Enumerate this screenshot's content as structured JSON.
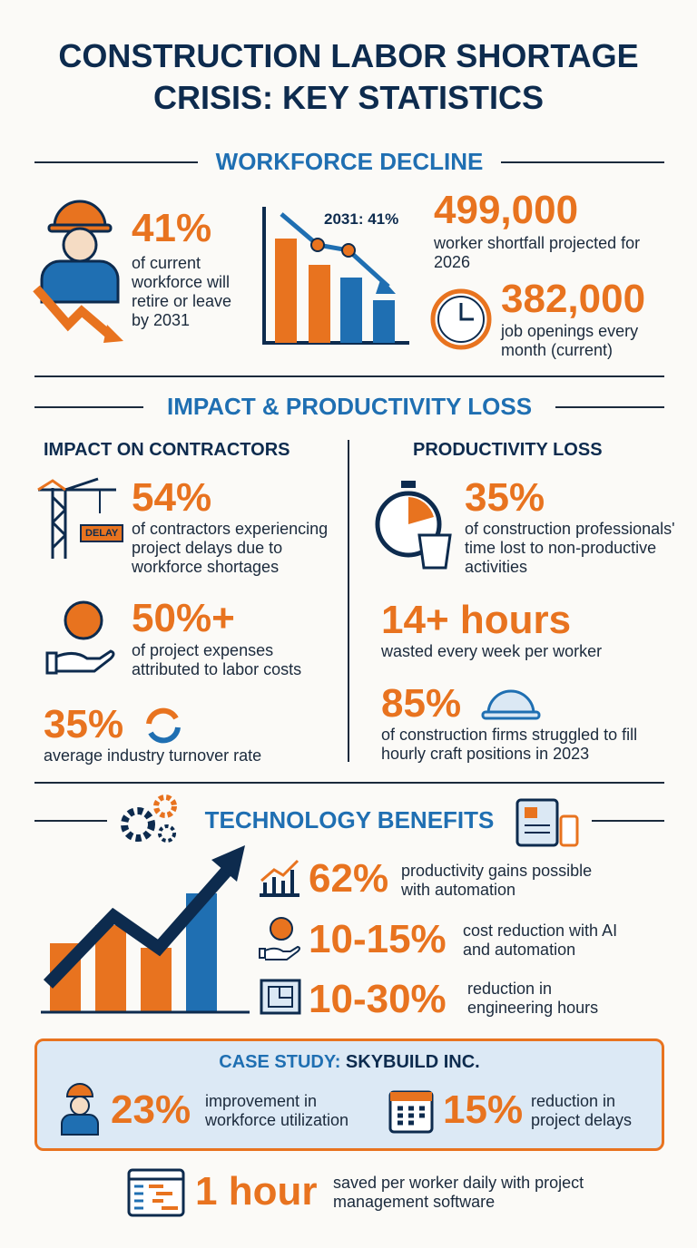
{
  "title_lines": [
    "CONSTRUCTION LABOR SHORTAGE",
    "CRISIS: KEY STATISTICS"
  ],
  "workforce_decline": {
    "heading": "WORKFORCE DECLINE",
    "retire": {
      "stat": "41%",
      "text": "of current workforce will retire or leave by 2031"
    },
    "chart_label": "2031: 41%",
    "shortfall": {
      "stat": "499,000",
      "text": "worker shortfall projected for 2026"
    },
    "openings": {
      "stat": "382,000",
      "text": "job openings every month (current)"
    }
  },
  "impact": {
    "heading": "IMPACT & PRODUCTIVITY LOSS",
    "contractors": {
      "heading": "IMPACT ON CONTRACTORS",
      "delay_sign": "DELAY",
      "items": [
        {
          "stat": "54%",
          "text": "of contractors experiencing project delays due to workforce shortages"
        },
        {
          "stat": "50%+",
          "text": "of project expenses attributed to labor costs"
        },
        {
          "stat": "35%",
          "text": "average industry turnover rate"
        }
      ]
    },
    "productivity": {
      "heading": "PRODUCTIVITY LOSS",
      "items": [
        {
          "stat": "35%",
          "text": "of construction professionals' time lost to non-productive activities"
        },
        {
          "stat": "14+ hours",
          "text": "wasted every week per worker"
        },
        {
          "stat": "85%",
          "text": "of construction firms struggled to fill hourly craft positions in 2023"
        }
      ]
    }
  },
  "technology": {
    "heading": "TECHNOLOGY BENEFITS",
    "items": [
      {
        "stat": "62%",
        "text": "productivity gains possible with automation"
      },
      {
        "stat": "10-15%",
        "text": "cost reduction with AI and automation"
      },
      {
        "stat": "10-30%",
        "text": "reduction in engineering hours"
      }
    ]
  },
  "case_study": {
    "label": "CASE STUDY:",
    "company": "SKYBUILD INC.",
    "items": [
      {
        "stat": "23%",
        "text": "improvement in workforce utilization"
      },
      {
        "stat": "15%",
        "text": "reduction in project delays"
      }
    ]
  },
  "footer": {
    "stat": "1 hour",
    "text": "saved per worker daily with project management software"
  }
}
